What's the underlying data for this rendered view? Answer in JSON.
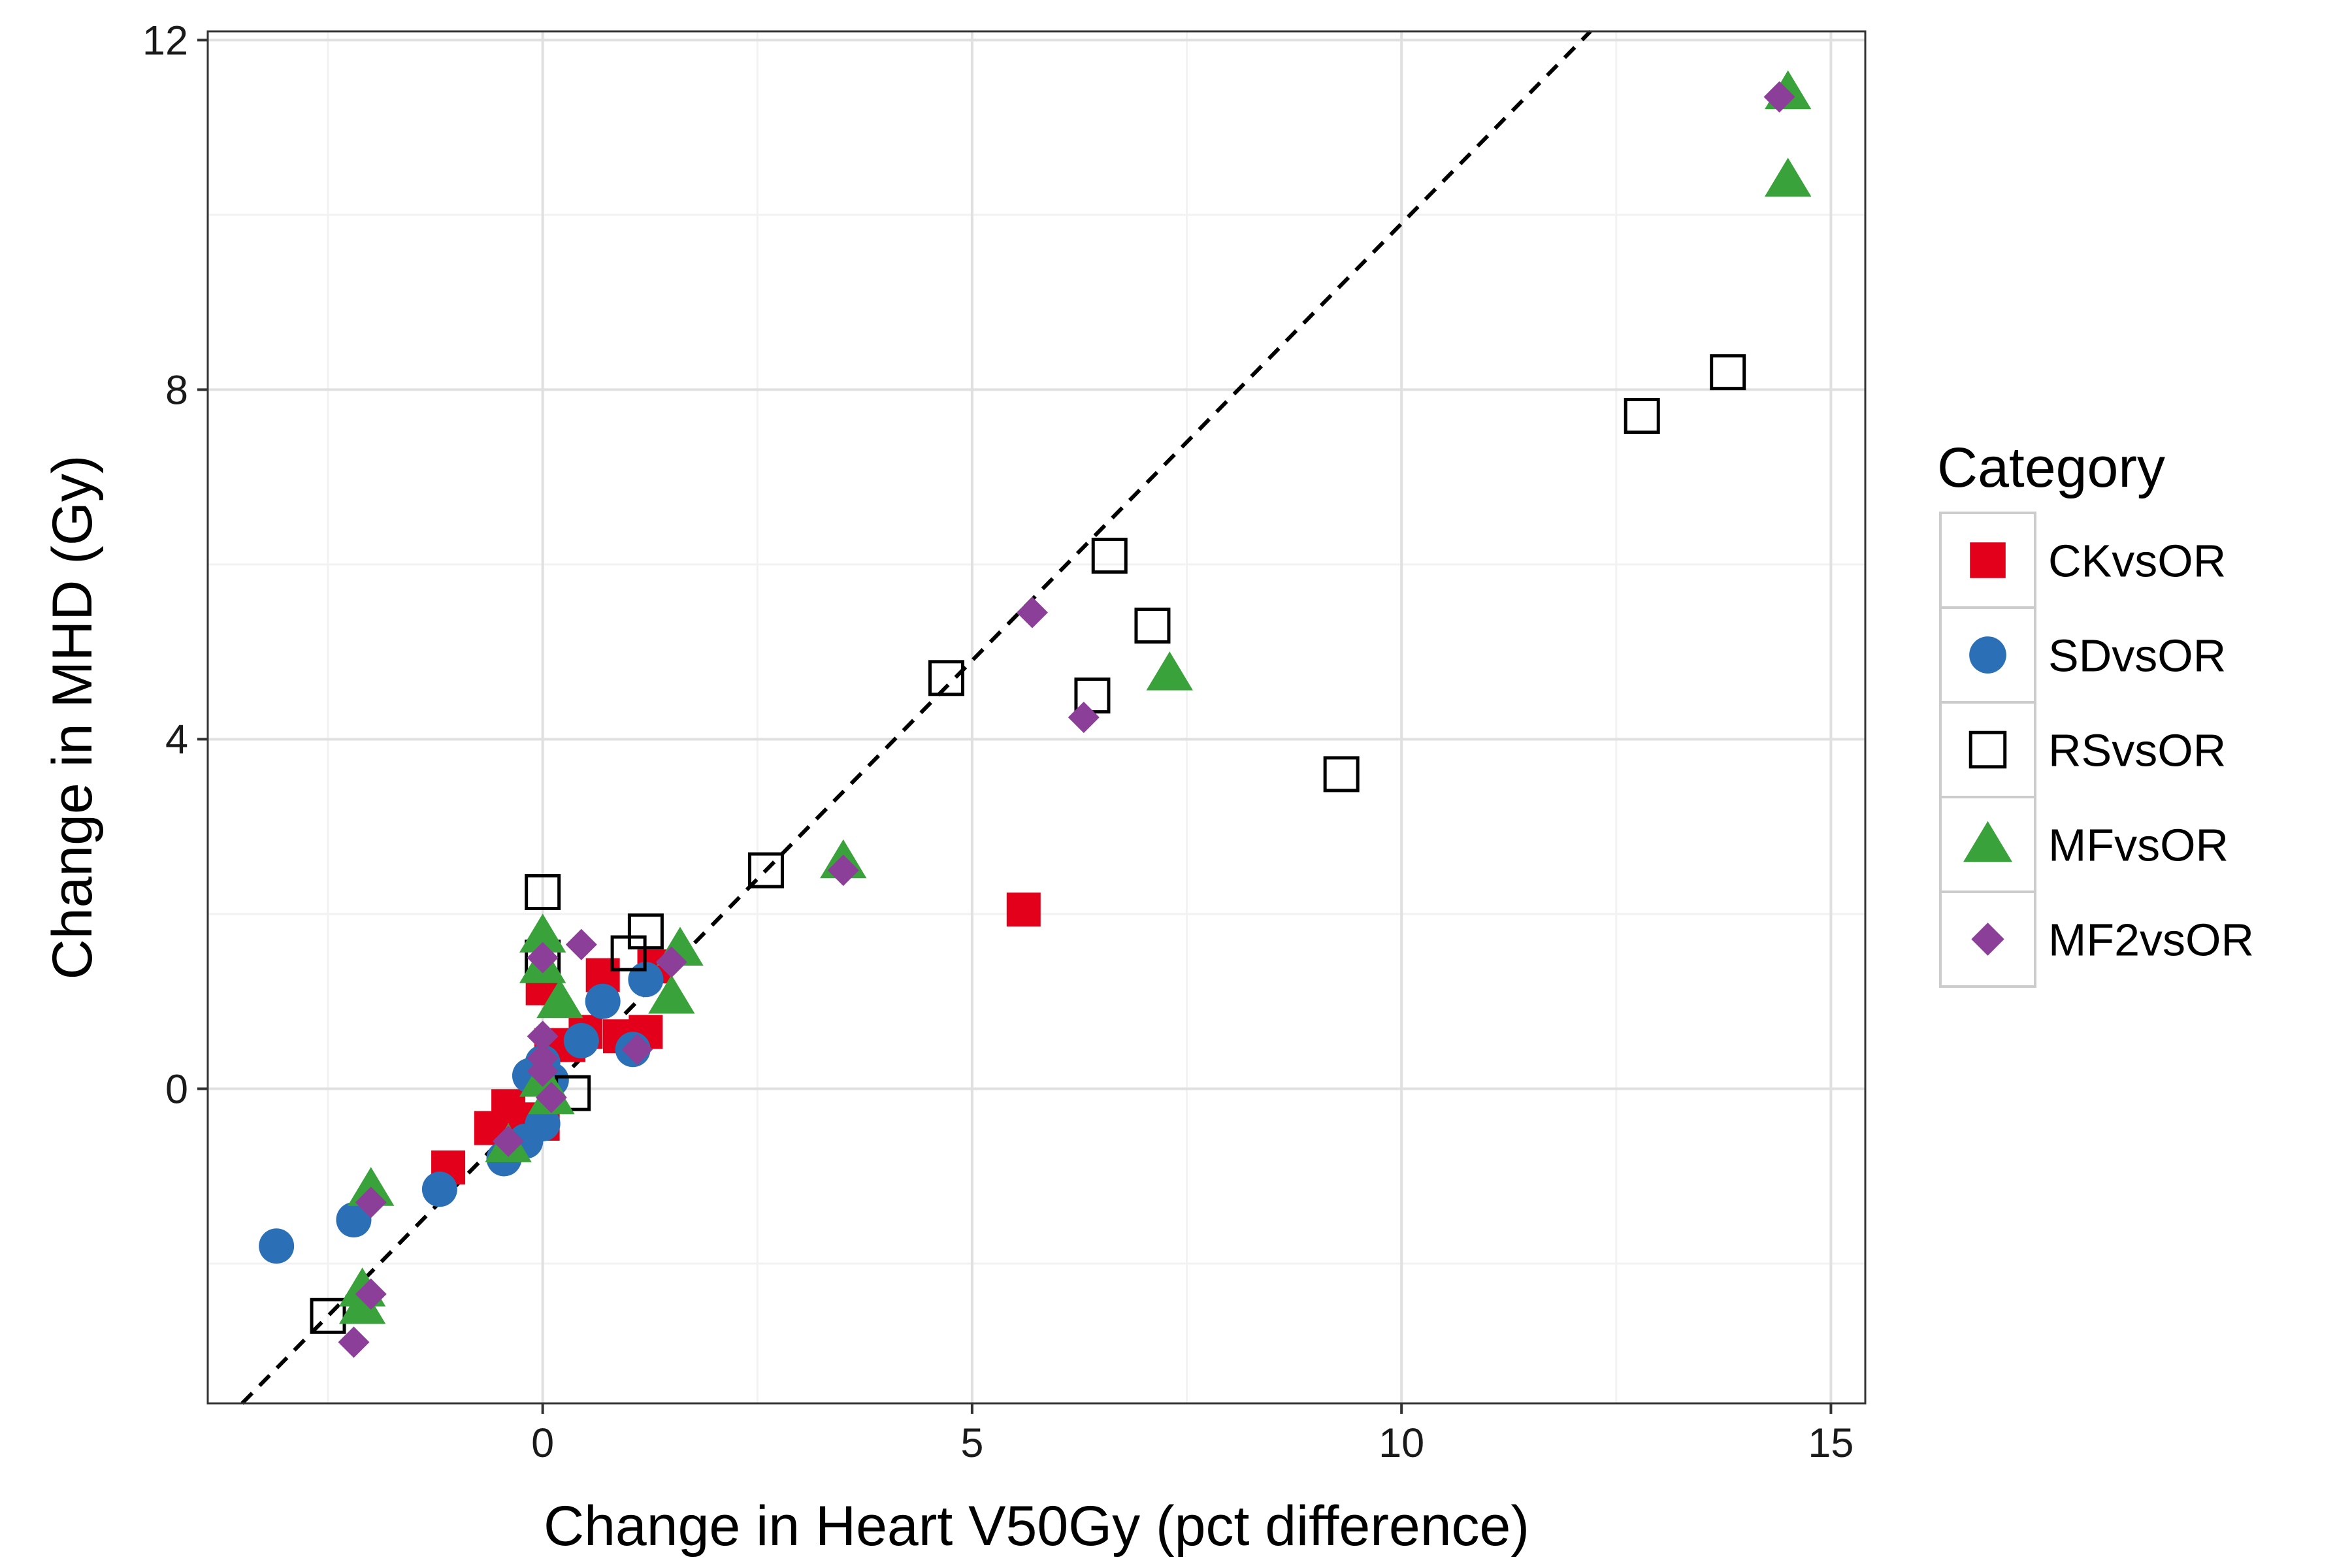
{
  "chart_data": {
    "type": "scatter",
    "title": "",
    "xlabel": "Change in Heart V50Gy (pct difference)",
    "ylabel": "Change in MHD (Gy)",
    "xlim": [
      -3.9,
      15.4
    ],
    "ylim": [
      -3.6,
      12.1
    ],
    "xticks": [
      0,
      5,
      10,
      15
    ],
    "yticks": [
      0,
      4,
      8,
      12
    ],
    "grid": true,
    "reference_line": {
      "type": "identity",
      "style": "dashed",
      "slope": 1,
      "intercept": -0.1
    },
    "legend": {
      "title": "Category",
      "position": "right"
    },
    "series": [
      {
        "name": "CKvsOR",
        "marker": "filled-square",
        "color": "#e3001b",
        "points": [
          [
            -1.1,
            -0.9
          ],
          [
            -0.6,
            -0.45
          ],
          [
            -0.4,
            -0.2
          ],
          [
            -0.2,
            -0.35
          ],
          [
            0,
            -0.4
          ],
          [
            0,
            1.15
          ],
          [
            0.1,
            0.5
          ],
          [
            0.3,
            0.5
          ],
          [
            0.5,
            0.65
          ],
          [
            0.7,
            1.3
          ],
          [
            0.9,
            0.6
          ],
          [
            1.2,
            0.65
          ],
          [
            1.3,
            1.4
          ],
          [
            5.6,
            2.05
          ]
        ]
      },
      {
        "name": "SDvsOR",
        "marker": "filled-circle",
        "color": "#2b6fb6",
        "points": [
          [
            -3.1,
            -1.8
          ],
          [
            -2.2,
            -1.5
          ],
          [
            -1.2,
            -1.15
          ],
          [
            -0.45,
            -0.8
          ],
          [
            -0.2,
            -0.6
          ],
          [
            -0.15,
            0.15
          ],
          [
            0,
            -0.4
          ],
          [
            0,
            0.3
          ],
          [
            0.1,
            0.1
          ],
          [
            0.45,
            0.55
          ],
          [
            0.7,
            1.0
          ],
          [
            1.05,
            0.45
          ],
          [
            1.2,
            1.25
          ]
        ]
      },
      {
        "name": "RSvsOR",
        "marker": "open-square",
        "color": "#000000",
        "points": [
          [
            -2.5,
            -2.6
          ],
          [
            0,
            2.25
          ],
          [
            0,
            1.5
          ],
          [
            0.35,
            -0.05
          ],
          [
            1.0,
            1.55
          ],
          [
            1.2,
            1.8
          ],
          [
            2.6,
            2.5
          ],
          [
            4.7,
            4.7
          ],
          [
            6.4,
            4.5
          ],
          [
            6.6,
            6.1
          ],
          [
            7.1,
            5.3
          ],
          [
            9.3,
            3.6
          ],
          [
            12.8,
            7.7
          ],
          [
            13.8,
            8.2
          ]
        ]
      },
      {
        "name": "MFvsOR",
        "marker": "filled-triangle",
        "color": "#3aa23a",
        "points": [
          [
            -2.1,
            -2.5
          ],
          [
            -2.1,
            -2.3
          ],
          [
            -2.0,
            -1.15
          ],
          [
            -0.4,
            -0.65
          ],
          [
            0,
            1.75
          ],
          [
            0,
            1.4
          ],
          [
            0,
            0.1
          ],
          [
            0.1,
            -0.1
          ],
          [
            0.2,
            1.0
          ],
          [
            1.5,
            1.05
          ],
          [
            1.6,
            1.6
          ],
          [
            3.5,
            2.6
          ],
          [
            7.3,
            4.75
          ],
          [
            14.5,
            10.4
          ],
          [
            14.5,
            11.4
          ]
        ]
      },
      {
        "name": "MF2vsOR",
        "marker": "filled-diamond",
        "color": "#8c3f99",
        "points": [
          [
            -2.2,
            -2.9
          ],
          [
            -2.0,
            -2.35
          ],
          [
            -2.0,
            -1.3
          ],
          [
            -0.4,
            -0.6
          ],
          [
            0,
            1.5
          ],
          [
            0,
            0.6
          ],
          [
            0,
            0.35
          ],
          [
            0,
            0.2
          ],
          [
            0.1,
            -0.1
          ],
          [
            0.45,
            1.65
          ],
          [
            1.1,
            0.45
          ],
          [
            1.5,
            1.45
          ],
          [
            3.5,
            2.5
          ],
          [
            5.7,
            5.45
          ],
          [
            6.3,
            4.25
          ],
          [
            14.4,
            11.35
          ]
        ]
      }
    ]
  }
}
